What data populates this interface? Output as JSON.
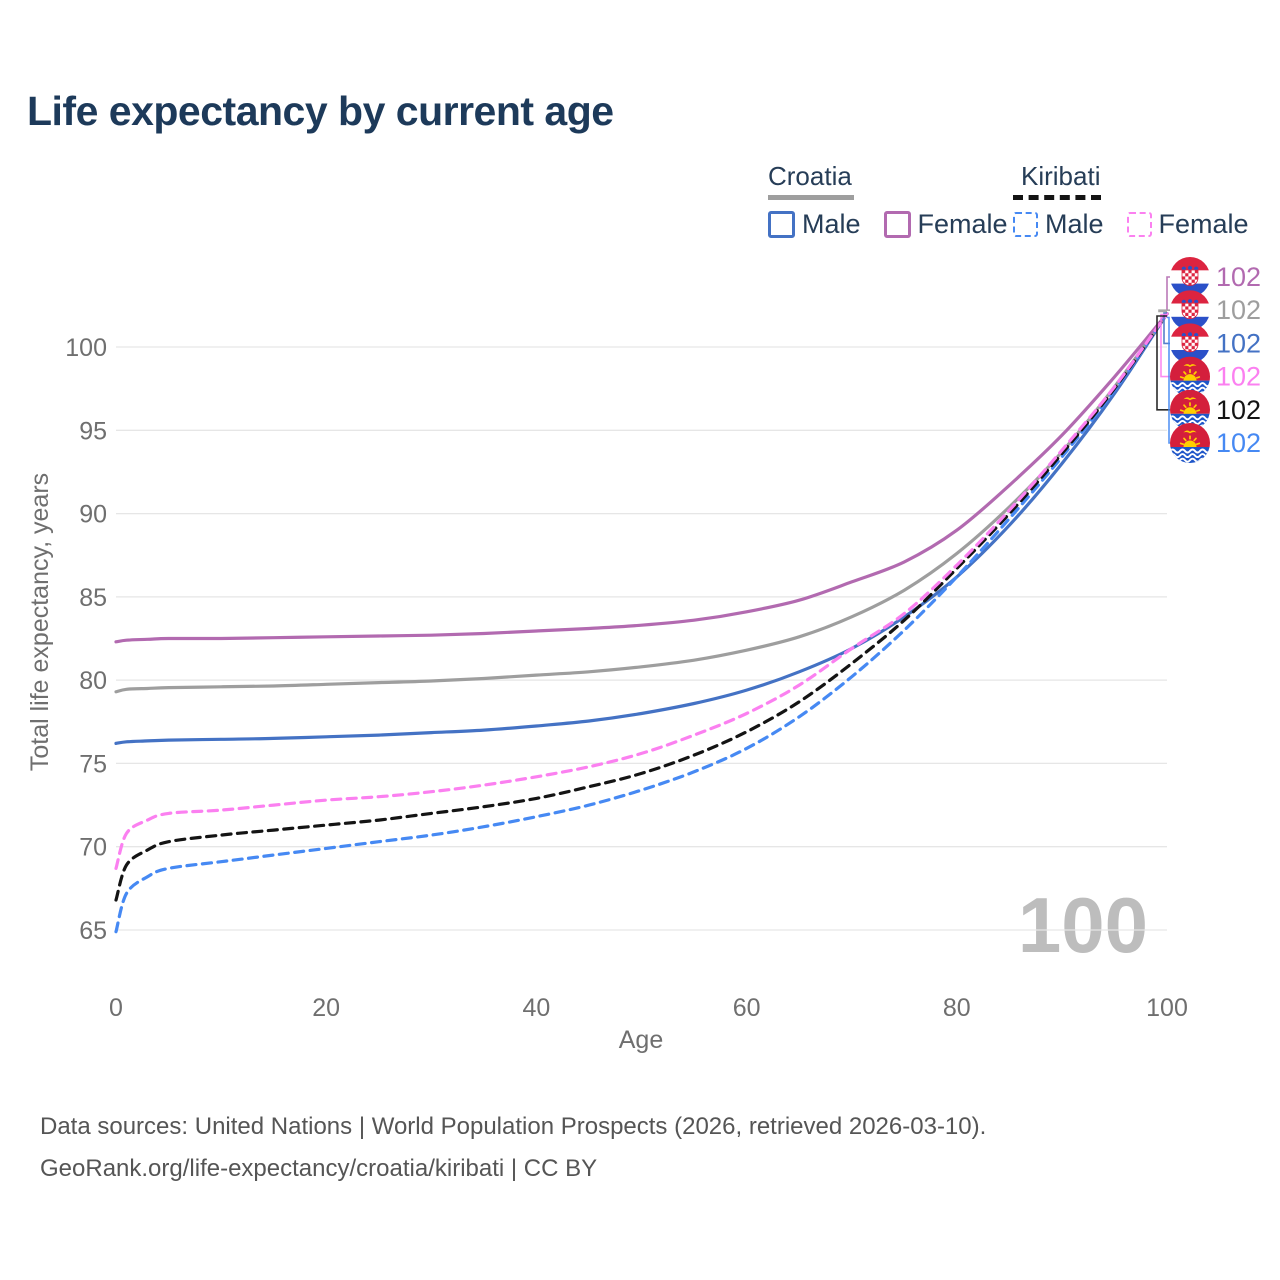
{
  "title": "Life expectancy by current age",
  "watermark": "100",
  "legend": {
    "groups": [
      {
        "name": "Croatia",
        "line_style": "solid",
        "items": [
          {
            "label": "Male",
            "color": "#4472c4"
          },
          {
            "label": "Female",
            "color": "#b26ab0"
          }
        ]
      },
      {
        "name": "Kiribati",
        "line_style": "dashed",
        "items": [
          {
            "label": "Male",
            "color": "#4689f3"
          },
          {
            "label": "Female",
            "color": "#fb80f0"
          }
        ]
      }
    ]
  },
  "footer": {
    "line1": "Data sources: United Nations | World Population Prospects (2026, retrieved 2026-03-10).",
    "line2": "GeoRank.org/life-expectancy/croatia/kiribati | CC BY"
  },
  "chart_data": {
    "type": "line",
    "title": "Life expectancy by current age",
    "xlabel": "Age",
    "ylabel": "Total life expectancy, years",
    "xlim": [
      0,
      100
    ],
    "ylim": [
      65,
      100
    ],
    "xticks": [
      0,
      20,
      40,
      60,
      80,
      100
    ],
    "yticks": [
      65,
      70,
      75,
      80,
      85,
      90,
      95,
      100
    ],
    "grid": "horizontal",
    "current_age_indicator": "100",
    "x": [
      0,
      1,
      3,
      5,
      10,
      15,
      20,
      25,
      30,
      35,
      40,
      45,
      50,
      55,
      60,
      65,
      70,
      75,
      80,
      85,
      90,
      95,
      100
    ],
    "series": [
      {
        "name": "Croatia Female",
        "country": "Croatia",
        "sex": "Female",
        "color": "#b26ab0",
        "dashed": false,
        "flag": "croatia",
        "end_label": "102",
        "values": [
          82.3,
          82.4,
          82.45,
          82.5,
          82.5,
          82.55,
          82.6,
          82.65,
          82.7,
          82.8,
          82.95,
          83.1,
          83.3,
          83.6,
          84.1,
          84.8,
          85.9,
          87.1,
          89.0,
          91.7,
          94.7,
          98.2,
          102
        ]
      },
      {
        "name": "Croatia Both sexes",
        "country": "Croatia",
        "sex": "Both",
        "color": "#9e9e9e",
        "dashed": false,
        "flag": "croatia",
        "end_label": "102",
        "values": [
          79.3,
          79.45,
          79.5,
          79.55,
          79.6,
          79.65,
          79.75,
          79.85,
          79.95,
          80.1,
          80.3,
          80.5,
          80.8,
          81.2,
          81.8,
          82.6,
          83.8,
          85.4,
          87.6,
          90.4,
          93.7,
          97.6,
          102
        ]
      },
      {
        "name": "Croatia Male",
        "country": "Croatia",
        "sex": "Male",
        "color": "#4472c4",
        "dashed": false,
        "flag": "croatia",
        "end_label": "102",
        "values": [
          76.2,
          76.3,
          76.35,
          76.4,
          76.45,
          76.5,
          76.6,
          76.7,
          76.85,
          77.0,
          77.25,
          77.55,
          78.0,
          78.6,
          79.4,
          80.5,
          81.9,
          83.8,
          86.2,
          89.3,
          93.0,
          97.2,
          102
        ]
      },
      {
        "name": "Kiribati Female",
        "country": "Kiribati",
        "sex": "Female",
        "color": "#fb80f0",
        "dashed": true,
        "flag": "kiribati",
        "end_label": "102",
        "values": [
          68.7,
          70.8,
          71.6,
          72.0,
          72.2,
          72.5,
          72.8,
          73.0,
          73.3,
          73.7,
          74.2,
          74.8,
          75.6,
          76.7,
          78.0,
          79.7,
          81.9,
          84.0,
          86.9,
          90.2,
          93.8,
          97.6,
          102
        ]
      },
      {
        "name": "Kiribati Both sexes",
        "country": "Kiribati",
        "sex": "Both",
        "color": "#141414",
        "dashed": true,
        "flag": "kiribati",
        "end_label": "102",
        "values": [
          66.8,
          68.9,
          69.8,
          70.3,
          70.7,
          71.0,
          71.3,
          71.6,
          72.0,
          72.4,
          72.9,
          73.6,
          74.4,
          75.5,
          76.9,
          78.7,
          81.0,
          83.6,
          86.7,
          90.0,
          93.6,
          97.5,
          102
        ]
      },
      {
        "name": "Kiribati Male",
        "country": "Kiribati",
        "sex": "Male",
        "color": "#4689f3",
        "dashed": true,
        "flag": "kiribati",
        "end_label": "102",
        "values": [
          64.9,
          67.2,
          68.2,
          68.7,
          69.1,
          69.5,
          69.9,
          70.3,
          70.7,
          71.2,
          71.8,
          72.5,
          73.4,
          74.5,
          75.9,
          77.8,
          80.2,
          83.0,
          86.2,
          89.7,
          93.4,
          97.4,
          102
        ]
      }
    ]
  }
}
